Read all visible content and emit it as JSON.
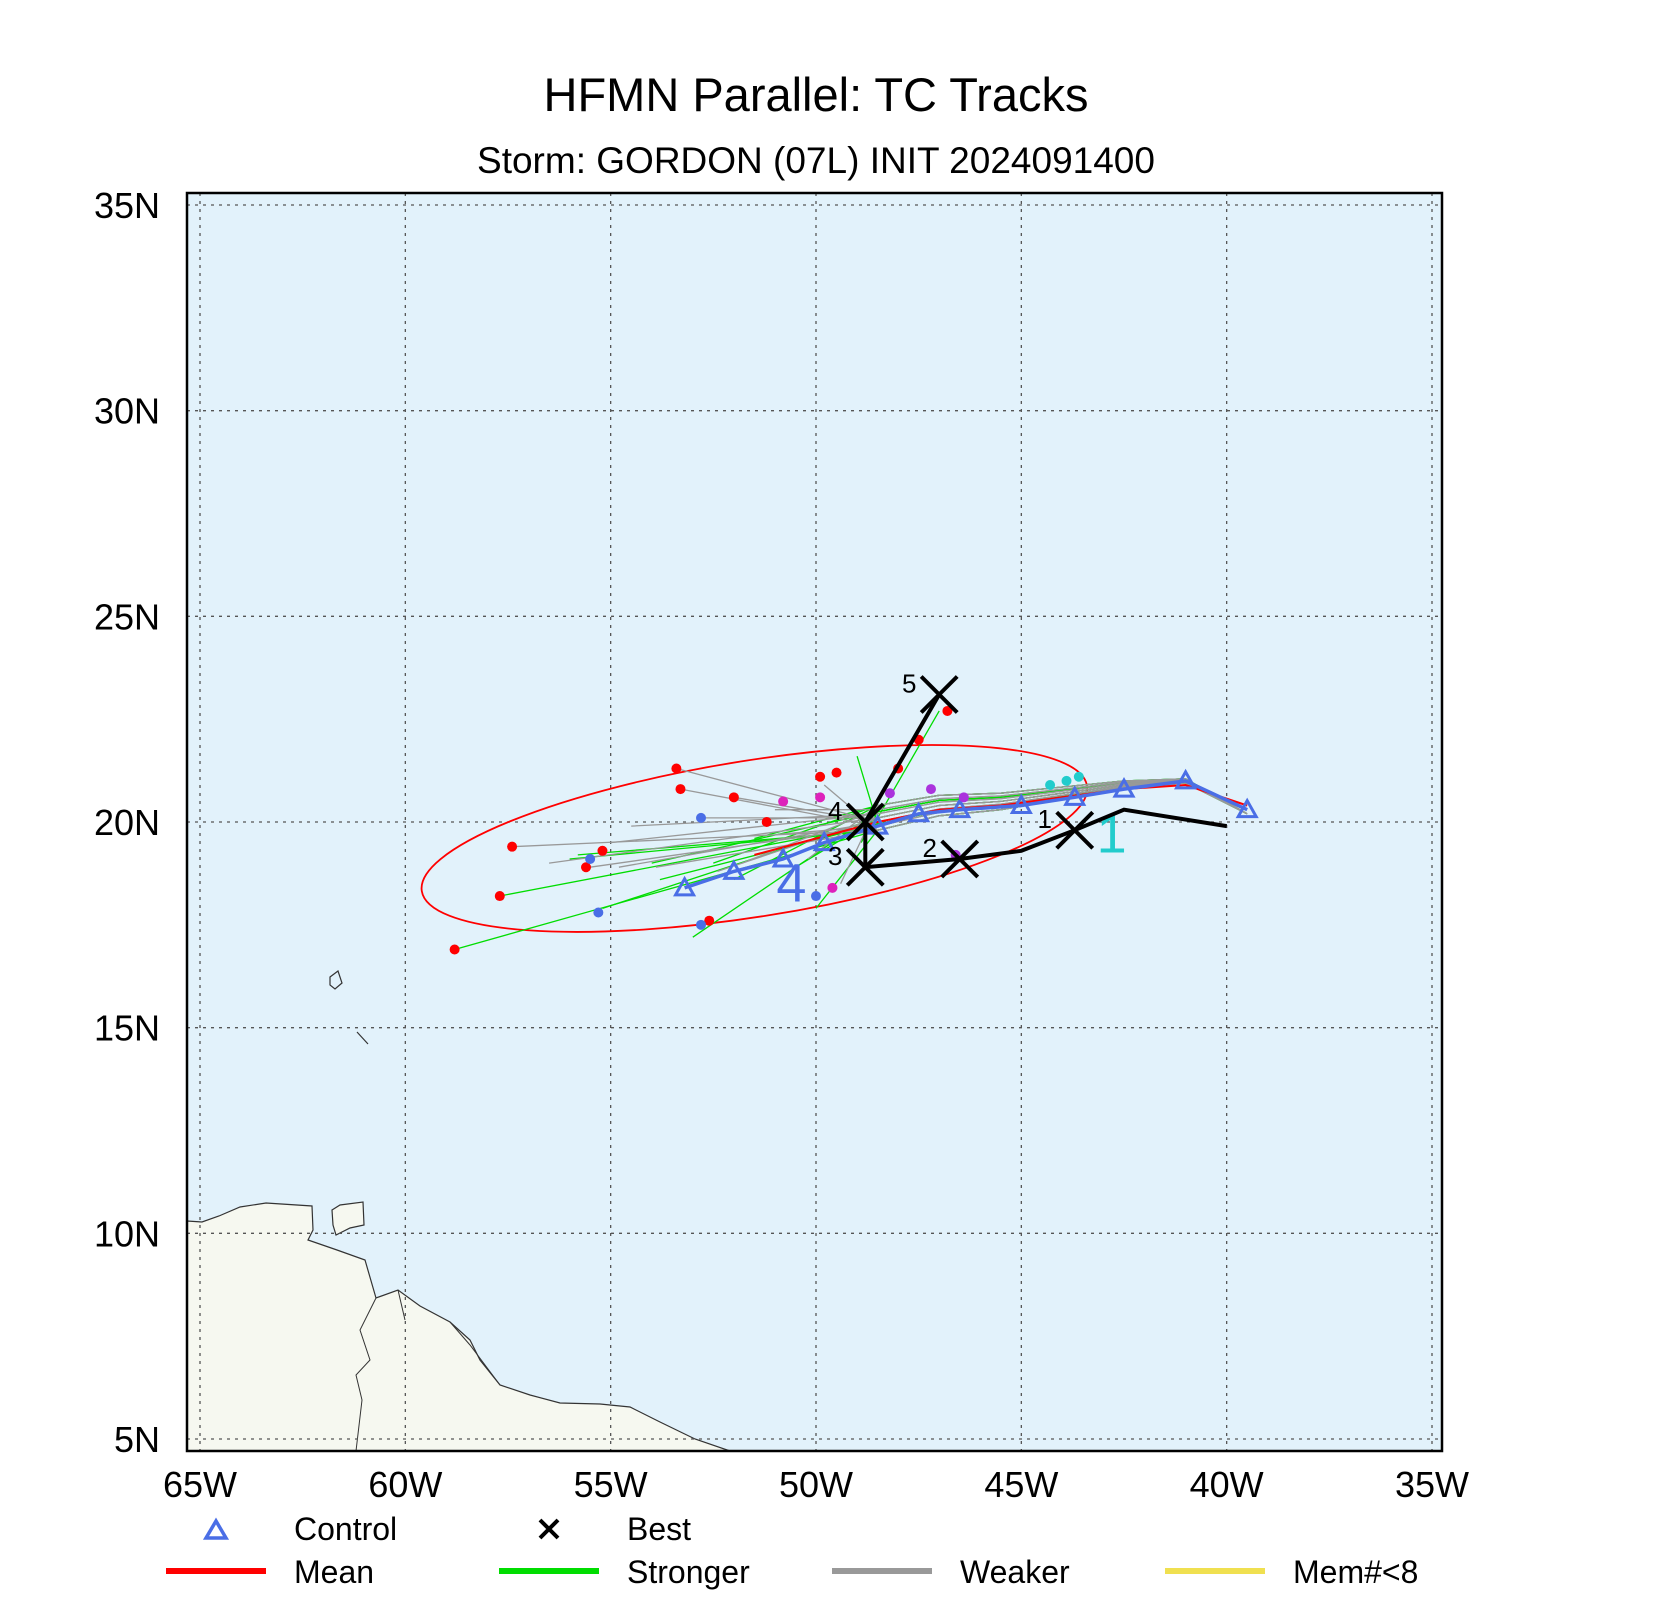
{
  "title": "HFMN Parallel: TC Tracks",
  "subtitle": "Storm: GORDON (07L) INIT 2024091400",
  "chart_data": {
    "type": "scatter",
    "title": "HFMN Parallel: TC Tracks",
    "subtitle": "Storm: GORDON (07L) INIT 2024091400",
    "x_ticks": [
      "65W",
      "60W",
      "55W",
      "50W",
      "45W",
      "40W",
      "35W"
    ],
    "y_ticks": [
      "5N",
      "10N",
      "15N",
      "20N",
      "25N",
      "30N",
      "35N"
    ],
    "xlim": [
      -65,
      -35
    ],
    "ylim": [
      5,
      35
    ],
    "grid": true,
    "colors": {
      "ocean": "#e2f2fb",
      "land": "#f6f8f0",
      "control": "#4a6ee6",
      "best": "#000000",
      "mean": "#ff0000",
      "stronger": "#00dd00",
      "weaker": "#999999",
      "mem_lt_8": "#f0e050"
    },
    "legend": {
      "placement": "bottom",
      "entries": [
        {
          "label": "Control",
          "symbol": "triangle",
          "color": "#4a6ee6"
        },
        {
          "label": "Best",
          "symbol": "x",
          "color": "#000000"
        },
        {
          "label": "Mean",
          "symbol": "line",
          "color": "#ff0000"
        },
        {
          "label": "Stronger",
          "symbol": "line",
          "color": "#00dd00"
        },
        {
          "label": "Weaker",
          "symbol": "line",
          "color": "#999999"
        },
        {
          "label": "Mem#<8",
          "symbol": "line",
          "color": "#f0e050"
        }
      ]
    },
    "best_track": {
      "lon": [
        -40.0,
        -42.5,
        -43.7,
        -45.0,
        -46.5,
        -48.8,
        -48.8,
        -47.0
      ],
      "lat": [
        19.9,
        20.3,
        19.8,
        19.3,
        19.1,
        18.9,
        20.0,
        23.1
      ],
      "markers": [
        {
          "label": "1",
          "lon": -43.7,
          "lat": 19.8
        },
        {
          "label": "2",
          "lon": -46.5,
          "lat": 19.1
        },
        {
          "label": "3",
          "lon": -48.8,
          "lat": 18.9
        },
        {
          "label": "4",
          "lon": -48.8,
          "lat": 20.0
        },
        {
          "label": "5",
          "lon": -47.0,
          "lat": 23.1
        }
      ]
    },
    "control_track": {
      "lon": [
        -39.5,
        -41.0,
        -42.5,
        -43.7,
        -45.0,
        -46.5,
        -47.5,
        -48.5,
        -49.8,
        -50.8,
        -52.0,
        -53.2
      ],
      "lat": [
        20.3,
        21.0,
        20.8,
        20.6,
        20.4,
        20.3,
        20.2,
        19.9,
        19.5,
        19.1,
        18.8,
        18.4
      ],
      "labels": [
        {
          "label": "1",
          "lon": -42.8,
          "lat": 19.7,
          "color": "#22cccc"
        },
        {
          "label": "4",
          "lon": -50.6,
          "lat": 18.5,
          "color": "#4a6ee6"
        }
      ]
    },
    "mean_track": {
      "lon": [
        -39.5,
        -41.0,
        -42.5,
        -44.0,
        -45.5,
        -47.0,
        -48.5,
        -50.0,
        -51.5
      ],
      "lat": [
        20.4,
        20.9,
        20.8,
        20.6,
        20.4,
        20.3,
        20.0,
        19.6,
        19.2
      ]
    },
    "uncertainty_ellipse": {
      "center_lon": -51.5,
      "center_lat": 19.6,
      "half_width_deg": 8.2,
      "half_height_deg": 1.9,
      "rotation_deg": -9,
      "color": "#ff0000"
    },
    "member_endpoints": [
      {
        "lon": -58.8,
        "lat": 16.9,
        "color": "#ff0000"
      },
      {
        "lon": -57.7,
        "lat": 18.2,
        "color": "#ff0000"
      },
      {
        "lon": -57.4,
        "lat": 19.4,
        "color": "#ff0000"
      },
      {
        "lon": -55.6,
        "lat": 18.9,
        "color": "#ff0000"
      },
      {
        "lon": -55.2,
        "lat": 19.3,
        "color": "#ff0000"
      },
      {
        "lon": -55.3,
        "lat": 17.8,
        "color": "#4a6ee6"
      },
      {
        "lon": -55.5,
        "lat": 19.1,
        "color": "#4a6ee6"
      },
      {
        "lon": -53.4,
        "lat": 21.3,
        "color": "#ff0000"
      },
      {
        "lon": -53.3,
        "lat": 20.8,
        "color": "#ff0000"
      },
      {
        "lon": -52.6,
        "lat": 17.6,
        "color": "#ff0000"
      },
      {
        "lon": -52.0,
        "lat": 20.6,
        "color": "#ff0000"
      },
      {
        "lon": -51.2,
        "lat": 20.0,
        "color": "#ff0000"
      },
      {
        "lon": -49.9,
        "lat": 21.1,
        "color": "#ff0000"
      },
      {
        "lon": -49.5,
        "lat": 21.2,
        "color": "#ff0000"
      },
      {
        "lon": -48.0,
        "lat": 21.3,
        "color": "#ff0000"
      },
      {
        "lon": -47.5,
        "lat": 22.0,
        "color": "#ff0000"
      },
      {
        "lon": -46.8,
        "lat": 22.7,
        "color": "#ff0000"
      },
      {
        "lon": -52.8,
        "lat": 20.1,
        "color": "#4a6ee6"
      },
      {
        "lon": -52.8,
        "lat": 17.5,
        "color": "#4a6ee6"
      },
      {
        "lon": -50.0,
        "lat": 18.2,
        "color": "#4a6ee6"
      },
      {
        "lon": -49.9,
        "lat": 20.6,
        "color": "#dd22bb"
      },
      {
        "lon": -50.8,
        "lat": 20.5,
        "color": "#dd22bb"
      },
      {
        "lon": -49.6,
        "lat": 18.4,
        "color": "#dd22bb"
      },
      {
        "lon": -48.2,
        "lat": 20.7,
        "color": "#aa33dd"
      },
      {
        "lon": -47.2,
        "lat": 20.8,
        "color": "#aa33dd"
      },
      {
        "lon": -46.4,
        "lat": 20.6,
        "color": "#aa33dd"
      },
      {
        "lon": -46.6,
        "lat": 19.2,
        "color": "#aa33dd"
      },
      {
        "lon": -44.3,
        "lat": 20.9,
        "color": "#22cccc"
      },
      {
        "lon": -43.9,
        "lat": 21.0,
        "color": "#22cccc"
      },
      {
        "lon": -43.6,
        "lat": 21.1,
        "color": "#22cccc"
      }
    ],
    "member_track_counts": {
      "stronger_green": 16,
      "weaker_gray": 18
    }
  }
}
